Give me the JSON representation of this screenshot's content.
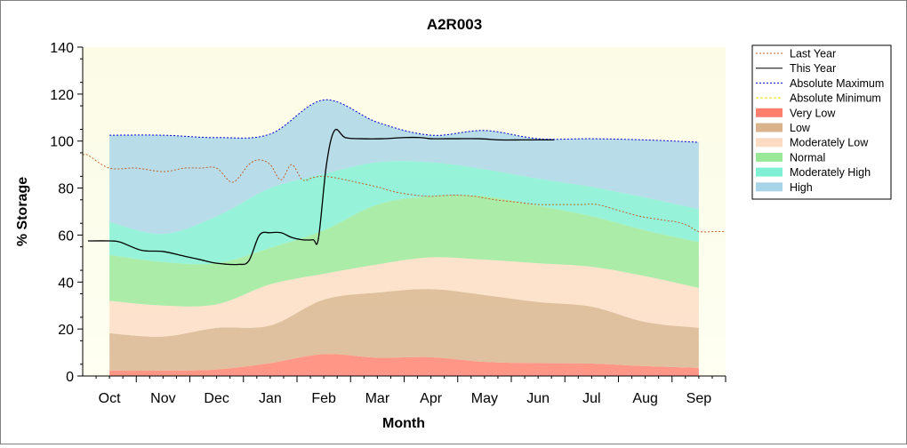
{
  "chart_data": {
    "type": "area",
    "title": "A2R003",
    "xlabel": "Month",
    "ylabel": "% Storage",
    "ylim": [
      0,
      140
    ],
    "xlim": [
      0,
      12
    ],
    "yticks": [
      0,
      20,
      40,
      60,
      80,
      100,
      120,
      140
    ],
    "categories": [
      "Oct",
      "Nov",
      "Dec",
      "Jan",
      "Feb",
      "Mar",
      "Apr",
      "May",
      "Jun",
      "Jul",
      "Aug",
      "Sep"
    ],
    "x": [
      0.5,
      1.5,
      2.5,
      3.5,
      4.5,
      5.5,
      6.5,
      7.5,
      8.5,
      9.5,
      10.5,
      11.5
    ],
    "grid": false,
    "legend_position": "right",
    "bands": [
      {
        "name": "Very Low",
        "color": "#ff7f6e",
        "lower": [
          0,
          0,
          0,
          0,
          0,
          0,
          0,
          0,
          0,
          0,
          0,
          0
        ],
        "upper": [
          2.3,
          2.3,
          2.8,
          5.5,
          9.3,
          7.8,
          8.0,
          6.0,
          5.5,
          5.3,
          4.2,
          3.5
        ]
      },
      {
        "name": "Low",
        "color": "#d9b38c",
        "lower": [
          2.3,
          2.3,
          2.8,
          5.5,
          9.3,
          7.8,
          8.0,
          6.0,
          5.5,
          5.3,
          4.2,
          3.5
        ],
        "upper": [
          18.2,
          16.8,
          20.5,
          21.5,
          32.5,
          35.5,
          37.0,
          34.5,
          31.5,
          29.5,
          23.0,
          20.5
        ]
      },
      {
        "name": "Moderately Low",
        "color": "#fddcc4",
        "lower": [
          18.2,
          16.8,
          20.5,
          21.5,
          32.5,
          35.5,
          37.0,
          34.5,
          31.5,
          29.5,
          23.0,
          20.5
        ],
        "upper": [
          32.0,
          30.0,
          30.5,
          39.0,
          43.5,
          47.5,
          50.5,
          49.5,
          48.0,
          46.5,
          42.5,
          37.5
        ]
      },
      {
        "name": "Normal",
        "color": "#98e898",
        "lower": [
          32.0,
          30.0,
          30.5,
          39.0,
          43.5,
          47.5,
          50.5,
          49.5,
          48.0,
          46.5,
          42.5,
          37.5
        ],
        "upper": [
          51.5,
          48.5,
          48.0,
          54.5,
          62.0,
          73.0,
          76.5,
          76.5,
          72.5,
          68.0,
          62.0,
          57.0
        ]
      },
      {
        "name": "Moderately High",
        "color": "#7ff0d4",
        "lower": [
          51.5,
          48.5,
          48.0,
          54.5,
          62.0,
          73.0,
          76.5,
          76.5,
          72.5,
          68.0,
          62.0,
          57.0
        ],
        "upper": [
          65.5,
          60.5,
          68.0,
          80.0,
          86.0,
          91.0,
          91.0,
          88.0,
          84.0,
          80.5,
          76.0,
          71.0
        ]
      },
      {
        "name": "High",
        "color": "#a8d4e8",
        "lower": [
          65.5,
          60.5,
          68.0,
          80.0,
          86.0,
          91.0,
          91.0,
          88.0,
          84.0,
          80.5,
          76.0,
          71.0
        ],
        "upper": [
          102.5,
          102.5,
          101.5,
          103.0,
          117.5,
          108.0,
          102.5,
          104.5,
          101.0,
          101.0,
          100.5,
          99.5
        ]
      }
    ],
    "series": [
      {
        "name": "Last Year",
        "color": "#c0622a",
        "dash": "2,2",
        "x": [
          0.0,
          0.1,
          0.5,
          1.0,
          1.5,
          1.9,
          2.2,
          2.5,
          2.8,
          3.1,
          3.3,
          3.5,
          3.7,
          3.9,
          4.1,
          4.3,
          4.5,
          4.8,
          5.1,
          5.5,
          5.8,
          6.2,
          6.5,
          6.9,
          7.3,
          7.7,
          8.1,
          8.5,
          8.9,
          9.3,
          9.6,
          10.0,
          10.4,
          10.8,
          11.1,
          11.3,
          11.5,
          11.8,
          12.0
        ],
        "y": [
          94,
          94,
          88.5,
          88.5,
          87.0,
          88.5,
          88.5,
          88.5,
          82.5,
          90.0,
          92.0,
          90.0,
          83.5,
          90.0,
          83.5,
          84.5,
          85.0,
          84.0,
          82.5,
          80.5,
          78.5,
          77.0,
          76.5,
          77.0,
          76.5,
          75.0,
          74.0,
          73.0,
          73.0,
          73.0,
          73.0,
          70.5,
          68.0,
          66.5,
          65.5,
          64.0,
          61.5,
          61.5,
          61.5
        ]
      },
      {
        "name": "This Year",
        "color": "#000000",
        "dash": "",
        "x": [
          0.1,
          0.5,
          0.7,
          1.1,
          1.5,
          1.9,
          2.2,
          2.5,
          2.9,
          3.1,
          3.3,
          3.5,
          3.7,
          3.9,
          4.1,
          4.3,
          4.4,
          4.55,
          4.7,
          4.9,
          5.2,
          5.6,
          6.0,
          6.3,
          6.5,
          6.8,
          7.0,
          7.4,
          7.8,
          8.2,
          8.6,
          8.8
        ],
        "y": [
          57.5,
          57.5,
          57.0,
          53.5,
          53.0,
          51.0,
          49.5,
          48.0,
          47.5,
          49.0,
          60.0,
          61.0,
          61.0,
          59.0,
          58.0,
          58.0,
          58.5,
          90.0,
          104.5,
          101.5,
          101.0,
          101.0,
          101.5,
          101.5,
          101.0,
          101.0,
          101.0,
          101.0,
          100.5,
          100.5,
          100.5,
          100.5
        ]
      },
      {
        "name": "Absolute Maximum",
        "color": "#0000cc",
        "dash": "2,2",
        "values_from_band": "High"
      },
      {
        "name": "Absolute Minimum",
        "color": "#f0e000",
        "dash": "3,2",
        "x": [
          0.5,
          11.5
        ],
        "y": [
          0,
          0
        ]
      }
    ]
  }
}
